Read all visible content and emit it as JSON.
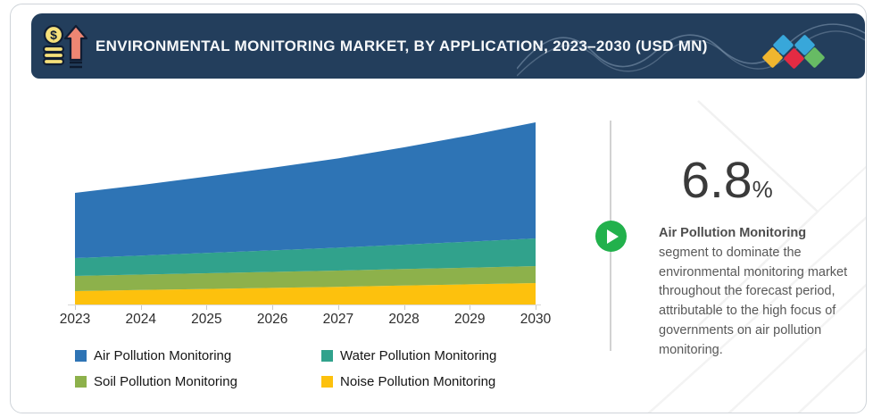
{
  "header": {
    "title": "ENVIRONMENTAL MONITORING MARKET, BY APPLICATION, 2023–2030 (USD MN)",
    "icon": "money-growth-icon",
    "logo_diamond_colors": [
      "#f0b62f",
      "#38a7da",
      "#e32b43",
      "#38a7da",
      "#67bb64"
    ],
    "background_color": "#233e5c"
  },
  "chart_data": {
    "type": "area",
    "stacked": true,
    "title": "ENVIRONMENTAL MONITORING MARKET, BY APPLICATION, 2023–2030 (USD MN)",
    "categories": [
      "2023",
      "2024",
      "2025",
      "2026",
      "2027",
      "2028",
      "2029",
      "2030"
    ],
    "series": [
      {
        "name": "Air Pollution Monitoring",
        "color": "#2e74b5",
        "values": [
          73,
          79,
          85.5,
          92.5,
          100,
          109,
          119,
          130
        ]
      },
      {
        "name": "Water Pollution Monitoring",
        "color": "#31a28c",
        "values": [
          20,
          21.3,
          22.7,
          24.1,
          25.6,
          27.3,
          29.1,
          31
        ]
      },
      {
        "name": "Soil Pollution Monitoring",
        "color": "#8db14b",
        "values": [
          17,
          17.3,
          17.6,
          17.9,
          18.2,
          18.5,
          18.7,
          19
        ]
      },
      {
        "name": "Noise Pollution Monitoring",
        "color": "#fdc10d",
        "values": [
          15,
          16.2,
          17.4,
          18.6,
          19.8,
          21.2,
          22.6,
          24
        ]
      }
    ],
    "xlabel": "",
    "ylabel": "",
    "y_axis_visible": false,
    "grid": false,
    "legend_position": "bottom",
    "ylim": [
      0,
      216
    ]
  },
  "callout": {
    "value": "6.8",
    "unit": "%",
    "heading": "Air Pollution Monitoring",
    "body": "segment to dominate the environmental monitoring market throughout the forecast period, attributable to the high focus of governments on air pollution monitoring.",
    "accent_color": "#22b14c",
    "play_icon": "play-icon"
  }
}
